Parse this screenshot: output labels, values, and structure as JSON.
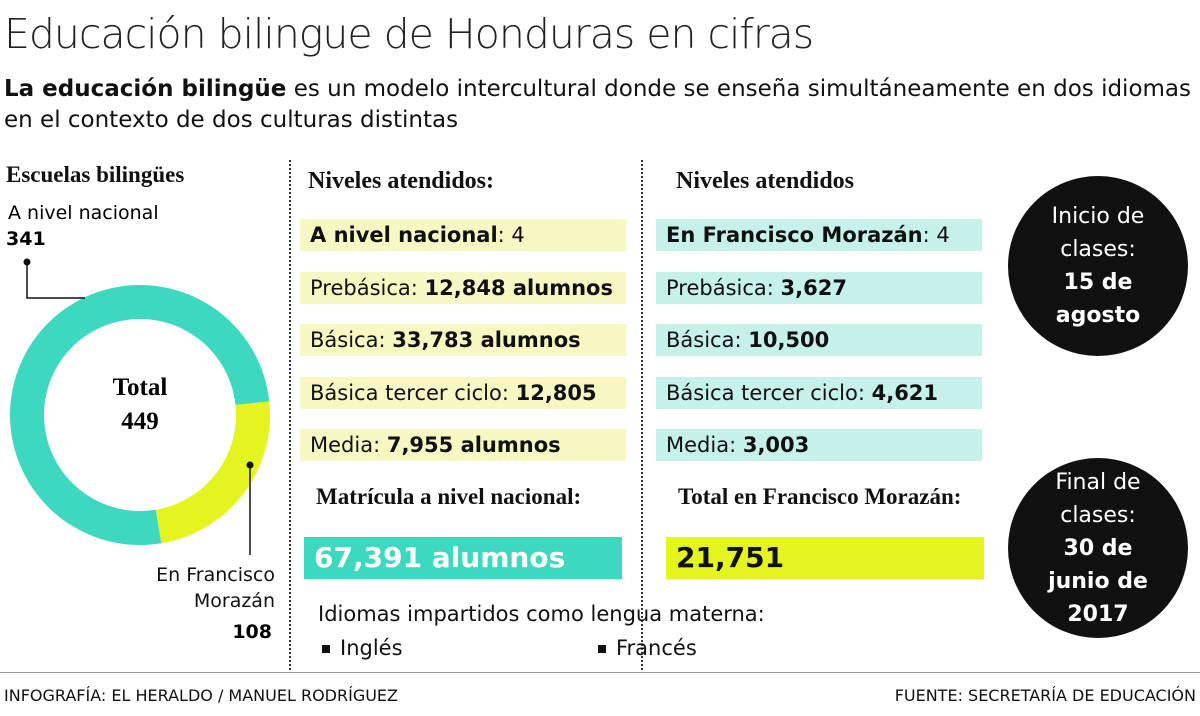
{
  "header": {
    "title": "Educación bilingue de Honduras en cifras",
    "subtitle": [
      {
        "text": "La educación bilingüe",
        "bold": true
      },
      {
        "text": " es un modelo intercultural donde se enseña simultáneamente en dos idiomas en el contexto de dos culturas distintas"
      }
    ]
  },
  "chart_data": {
    "type": "pie",
    "donut": true,
    "title": "Escuelas bilingües",
    "categories": [
      "A nivel nacional",
      "En Francisco Morazán"
    ],
    "values": [
      341,
      108
    ],
    "colors": [
      "#3ed8c1",
      "#e3f41f"
    ],
    "center_label": "Total",
    "center_value": 449
  },
  "national": {
    "heading": "Niveles atendidos:",
    "rows": [
      [
        {
          "text": "A nivel nacional",
          "bold": true
        },
        {
          "text": ": 4"
        }
      ],
      [
        {
          "text": "Prebásica: "
        },
        {
          "text": "12,848 alumnos",
          "bold": true
        }
      ],
      [
        {
          "text": "Básica: "
        },
        {
          "text": "33,783 alumnos",
          "bold": true
        }
      ],
      [
        {
          "text": "Básica tercer ciclo: "
        },
        {
          "text": "12,805",
          "bold": true
        }
      ],
      [
        {
          "text": "Media: "
        },
        {
          "text": "7,955 alumnos",
          "bold": true
        }
      ]
    ],
    "total_heading": "Matrícula a nivel nacional:",
    "total": "67,391 alumnos"
  },
  "morazan": {
    "heading": "Niveles atendidos",
    "rows": [
      [
        {
          "text": "En Francisco Morazán",
          "bold": true
        },
        {
          "text": ": 4"
        }
      ],
      [
        {
          "text": "Prebásica: "
        },
        {
          "text": "3,627",
          "bold": true
        }
      ],
      [
        {
          "text": "Básica: "
        },
        {
          "text": "10,500",
          "bold": true
        }
      ],
      [
        {
          "text": "Básica tercer ciclo: "
        },
        {
          "text": "4,621",
          "bold": true
        }
      ],
      [
        {
          "text": "Media: "
        },
        {
          "text": "3,003",
          "bold": true
        }
      ]
    ],
    "total_heading": "Total en Francisco Morazán:",
    "total": "21,751"
  },
  "start": {
    "lines": [
      {
        "text": "Inicio de"
      },
      {
        "text": "clases:"
      },
      {
        "text": "15 de",
        "bold": true
      },
      {
        "text": "agosto",
        "bold": true
      }
    ]
  },
  "end": {
    "lines": [
      {
        "text": "Final de"
      },
      {
        "text": "clases:"
      },
      {
        "text": "30 de",
        "bold": true
      },
      {
        "text": "junio de",
        "bold": true
      },
      {
        "text": "2017",
        "bold": true
      }
    ]
  },
  "languages": {
    "heading": "Idiomas impartidos como lengua materna:",
    "items": [
      "Inglés",
      "Francés"
    ]
  },
  "footer": {
    "credit": "INFOGRAFÍA: EL HERALDO / MANUEL RODRÍGUEZ",
    "source": "FUENTE: SECRETARÍA DE EDUCACIÓN"
  }
}
